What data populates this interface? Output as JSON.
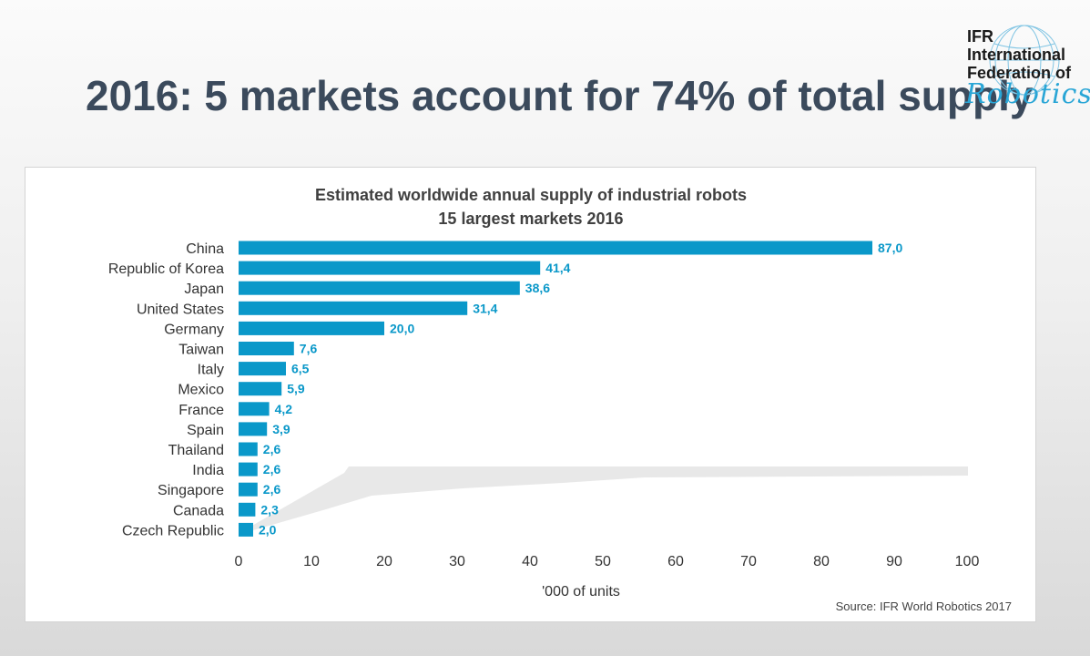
{
  "slide": {
    "title": "2016: 5 markets account for 74% of total supply"
  },
  "logo": {
    "line1": "IFR",
    "line2": "International",
    "line3": "Federation of",
    "script": "Robotics"
  },
  "source": "Source: IFR World Robotics 2017",
  "colors": {
    "bar": "#0a98c9",
    "label": "#0a98c9",
    "title_text": "#3b4a5c"
  },
  "chart_data": {
    "type": "bar",
    "orientation": "horizontal",
    "title": "Estimated worldwide  annual supply of industrial robots",
    "subtitle": "15 largest markets 2016",
    "xlabel": "'000 of units",
    "ylabel": "",
    "xlim": [
      0,
      100
    ],
    "xticks": [
      0,
      10,
      20,
      30,
      40,
      50,
      60,
      70,
      80,
      90,
      100
    ],
    "grid": false,
    "categories": [
      "China",
      "Republic of Korea",
      "Japan",
      "United States",
      "Germany",
      "Taiwan",
      "Italy",
      "Mexico",
      "France",
      "Spain",
      "Thailand",
      "India",
      "Singapore",
      "Canada",
      "Czech Republic"
    ],
    "values": [
      87.0,
      41.4,
      38.6,
      31.4,
      20.0,
      7.6,
      6.5,
      5.9,
      4.2,
      3.9,
      2.6,
      2.6,
      2.6,
      2.3,
      2.0
    ],
    "value_labels": [
      "87,0",
      "41,4",
      "38,6",
      "31,4",
      "20,0",
      "7,6",
      "6,5",
      "5,9",
      "4,2",
      "3,9",
      "2,6",
      "2,6",
      "2,6",
      "2,3",
      "2,0"
    ]
  }
}
